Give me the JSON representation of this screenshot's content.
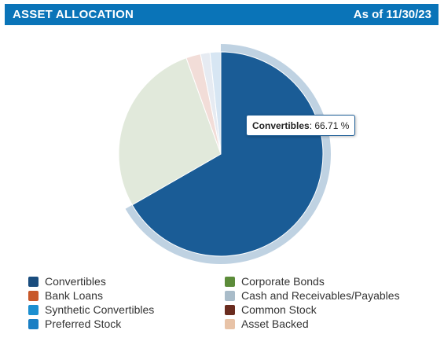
{
  "header": {
    "title": "ASSET ALLOCATION",
    "as_of": "As of 11/30/23"
  },
  "tooltip": {
    "name": "Convertibles",
    "value": ": 66.71 %"
  },
  "chart_data": {
    "type": "pie",
    "title": "",
    "series": [
      {
        "name": "Convertibles",
        "value": 66.71,
        "color": "#1a5c96",
        "highlighted": true
      },
      {
        "name": "Synthetic Convertibles",
        "value": 27.8,
        "color": "#e1e9db"
      },
      {
        "name": "Bank Loans",
        "value": 2.3,
        "color": "#f2ddd8"
      },
      {
        "name": "Preferred Stock",
        "value": 1.5,
        "color": "#e6ebf2"
      },
      {
        "name": "Cash and Receivables/Payables",
        "value": 1.7,
        "color": "#d7e6f3"
      }
    ]
  },
  "legend": {
    "left": [
      {
        "label": "Convertibles",
        "color": "#1a4d7e"
      },
      {
        "label": "Bank Loans",
        "color": "#c8582a"
      },
      {
        "label": "Synthetic Convertibles",
        "color": "#1c8fd0"
      },
      {
        "label": "Preferred Stock",
        "color": "#1a7fc4"
      }
    ],
    "right": [
      {
        "label": "Corporate Bonds",
        "color": "#5c8c3a"
      },
      {
        "label": "Cash and Receivables/Payables",
        "color": "#a9bcc9"
      },
      {
        "label": "Common Stock",
        "color": "#6a2c1f"
      },
      {
        "label": "Asset Backed",
        "color": "#e8c3a7"
      }
    ]
  }
}
